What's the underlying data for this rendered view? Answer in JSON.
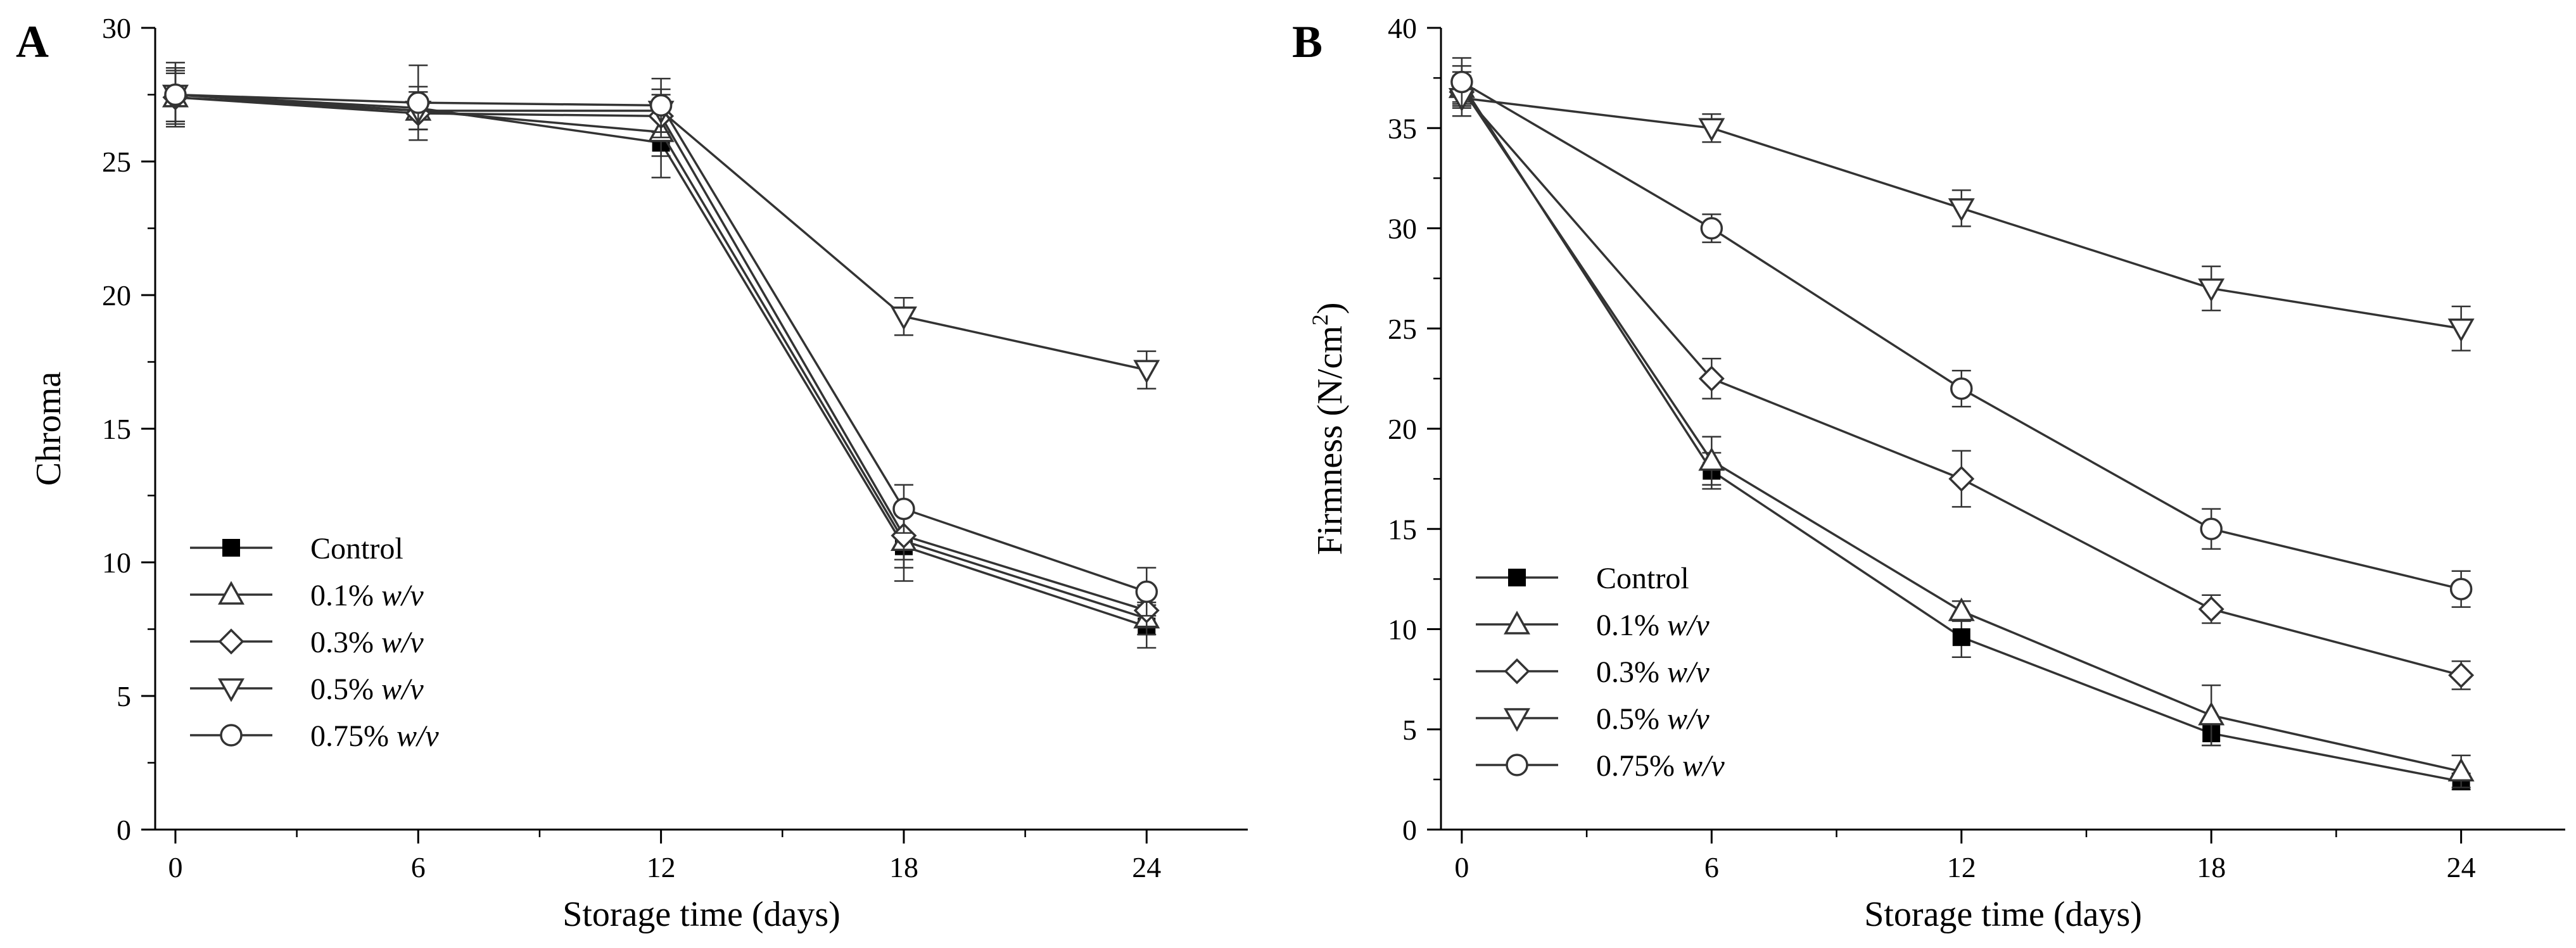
{
  "chart_data": [
    {
      "type": "line",
      "panel_label": "A",
      "title": "",
      "xlabel": "Storage time (days)",
      "ylabel": "Chroma",
      "x": [
        0,
        6,
        12,
        18,
        24
      ],
      "xlim": [
        -0.5,
        26.5
      ],
      "ylim": [
        0,
        30
      ],
      "xticks": [
        0,
        6,
        12,
        18,
        24
      ],
      "yticks": [
        0,
        5,
        10,
        15,
        20,
        25,
        30
      ],
      "grid": false,
      "legend_position": "lower-left",
      "series": [
        {
          "name": "Control",
          "marker": "filled-square",
          "values": [
            27.5,
            27.0,
            25.7,
            10.6,
            7.6
          ],
          "errors": [
            1.2,
            0.8,
            1.3,
            1.3,
            0.8
          ]
        },
        {
          "name": "0.1% w/v",
          "marker": "triangle-up",
          "values": [
            27.4,
            26.9,
            26.1,
            10.8,
            7.9
          ],
          "errors": [
            1.0,
            0.7,
            0.9,
            1.0,
            0.6
          ]
        },
        {
          "name": "0.3% w/v",
          "marker": "diamond",
          "values": [
            27.4,
            26.8,
            26.7,
            11.0,
            8.2
          ],
          "errors": [
            0.9,
            0.6,
            0.8,
            0.9,
            0.6
          ]
        },
        {
          "name": "0.5% w/v",
          "marker": "triangle-down",
          "values": [
            27.5,
            26.9,
            26.9,
            19.2,
            17.2
          ],
          "errors": [
            1.0,
            0.7,
            0.8,
            0.7,
            0.7
          ]
        },
        {
          "name": "0.75% w/v",
          "marker": "circle",
          "values": [
            27.5,
            27.2,
            27.1,
            12.0,
            8.9
          ],
          "errors": [
            1.0,
            1.4,
            1.0,
            0.9,
            0.9
          ]
        }
      ]
    },
    {
      "type": "line",
      "panel_label": "B",
      "title": "",
      "xlabel": "Storage time (days)",
      "ylabel": "Firmness (N/cm",
      "ylabel_superscript": "2",
      "ylabel_close": ")",
      "x": [
        0,
        6,
        12,
        18,
        24
      ],
      "xlim": [
        -0.5,
        26.5
      ],
      "ylim": [
        0,
        40
      ],
      "xticks": [
        0,
        6,
        12,
        18,
        24
      ],
      "yticks": [
        0,
        5,
        10,
        15,
        20,
        25,
        30,
        35,
        40
      ],
      "grid": false,
      "legend_position": "lower-left",
      "series": [
        {
          "name": "Control",
          "marker": "filled-square",
          "values": [
            37.2,
            17.9,
            9.6,
            4.8,
            2.4
          ],
          "errors": [
            0.9,
            0.9,
            1.0,
            0.6,
            0.4
          ]
        },
        {
          "name": "0.1% w/v",
          "marker": "triangle-up",
          "values": [
            37.0,
            18.4,
            10.9,
            5.7,
            2.9
          ],
          "errors": [
            0.8,
            1.2,
            0.5,
            1.5,
            0.8
          ]
        },
        {
          "name": "0.3% w/v",
          "marker": "diamond",
          "values": [
            36.8,
            22.5,
            17.5,
            11.0,
            7.7
          ],
          "errors": [
            0.8,
            1.0,
            1.4,
            0.7,
            0.7
          ]
        },
        {
          "name": "0.5% w/v",
          "marker": "triangle-down",
          "values": [
            36.5,
            35.0,
            31.0,
            27.0,
            25.0
          ],
          "errors": [
            0.9,
            0.7,
            0.9,
            1.1,
            1.1
          ]
        },
        {
          "name": "0.75% w/v",
          "marker": "circle",
          "values": [
            37.3,
            30.0,
            22.0,
            15.0,
            12.0
          ],
          "errors": [
            1.2,
            0.7,
            0.9,
            1.0,
            0.9
          ]
        }
      ]
    }
  ]
}
